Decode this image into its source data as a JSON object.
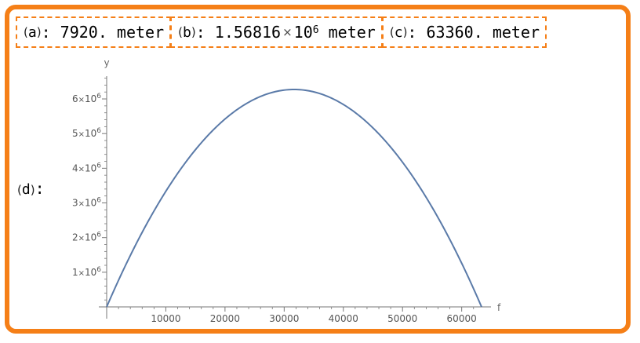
{
  "answers": {
    "a": {
      "open": "(",
      "letter": "a",
      "close": ")",
      "sep": ": ",
      "value": "7920.",
      "unit": "meter"
    },
    "b": {
      "open": "(",
      "letter": "b",
      "close": ")",
      "sep": ": ",
      "mantissa": "1.56816",
      "times": "×",
      "base": "10",
      "exponent": "6",
      "unit": "meter"
    },
    "c": {
      "open": "(",
      "letter": "c",
      "close": ")",
      "sep": ": ",
      "value": "63360.",
      "unit": "meter"
    },
    "d": {
      "open": "(",
      "letter": "d",
      "close": ")",
      "sep": ":"
    }
  },
  "colors": {
    "frame": "#f57f17",
    "curve": "#5a7aa8",
    "axis": "#777777"
  },
  "chart_data": {
    "type": "line",
    "title": "",
    "xlabel": "f",
    "ylabel": "y",
    "xlim": [
      0,
      63360
    ],
    "ylim": [
      0,
      6272640
    ],
    "grid": false,
    "x_ticks": [
      {
        "value": 10000,
        "label": "10000"
      },
      {
        "value": 20000,
        "label": "20000"
      },
      {
        "value": 30000,
        "label": "30000"
      },
      {
        "value": 40000,
        "label": "40000"
      },
      {
        "value": 50000,
        "label": "50000"
      },
      {
        "value": 60000,
        "label": "60000"
      }
    ],
    "y_ticks": [
      {
        "value": 1000000,
        "mantissa": "1",
        "times": "×",
        "base": "10",
        "exponent": "6"
      },
      {
        "value": 2000000,
        "mantissa": "2",
        "times": "×",
        "base": "10",
        "exponent": "6"
      },
      {
        "value": 3000000,
        "mantissa": "3",
        "times": "×",
        "base": "10",
        "exponent": "6"
      },
      {
        "value": 4000000,
        "mantissa": "4",
        "times": "×",
        "base": "10",
        "exponent": "6"
      },
      {
        "value": 5000000,
        "mantissa": "5",
        "times": "×",
        "base": "10",
        "exponent": "6"
      },
      {
        "value": 6000000,
        "mantissa": "6",
        "times": "×",
        "base": "10",
        "exponent": "6"
      }
    ],
    "series": [
      {
        "x": [
          0,
          3960,
          7920,
          11880,
          15840,
          19800,
          23760,
          27720,
          31680,
          35640,
          39600,
          43560,
          47520,
          51480,
          55440,
          59400,
          63360
        ],
        "y": [
          0,
          1470150,
          2744280,
          3822390,
          4704480,
          5390550,
          5880600,
          6174630,
          6272640,
          6174630,
          5880600,
          5390550,
          4704480,
          3822390,
          2744280,
          1470150,
          0
        ]
      }
    ]
  }
}
